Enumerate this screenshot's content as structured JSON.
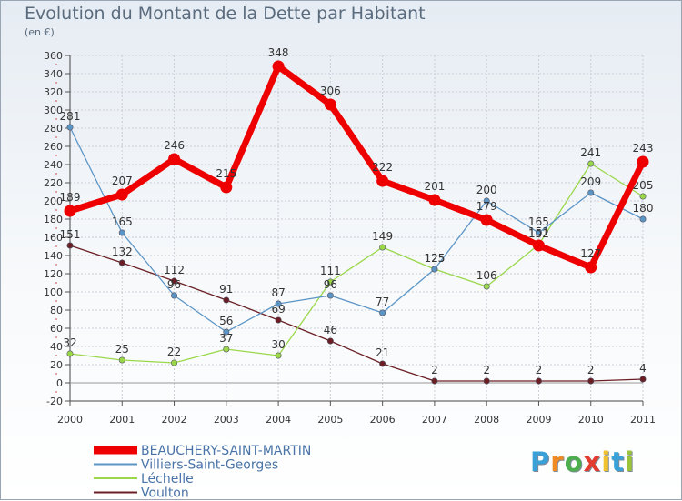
{
  "title": "Evolution du Montant de la Dette par Habitant",
  "unit": "(en €)",
  "logo": {
    "letters": [
      "P",
      "r",
      "o",
      "x",
      "i",
      "t",
      "i"
    ],
    "colors": [
      "#39a0d8",
      "#f08a24",
      "#4cae4c",
      "#e33b2e",
      "#f2c12e",
      "#39a0d8",
      "#9bc43a"
    ]
  },
  "chart_data": {
    "type": "line",
    "x": [
      "2000",
      "2001",
      "2002",
      "2003",
      "2004",
      "2005",
      "2006",
      "2007",
      "2008",
      "2009",
      "2010",
      "2011"
    ],
    "ylim": [
      -20,
      360
    ],
    "yticks": [
      -20,
      0,
      20,
      40,
      60,
      80,
      100,
      120,
      140,
      160,
      180,
      200,
      220,
      240,
      260,
      280,
      300,
      320,
      340,
      360
    ],
    "grid": true,
    "legend_position": "bottom-left",
    "series": [
      {
        "name": "Voulton",
        "color": "#6b1f24",
        "values": [
          151,
          132,
          112,
          91,
          69,
          46,
          21,
          2,
          2,
          2,
          2,
          4
        ],
        "labels": [
          "151",
          "132",
          "112",
          "91",
          "69",
          "46",
          "21",
          "2",
          "2",
          "2",
          "2",
          "4"
        ]
      },
      {
        "name": "Léchelle",
        "color": "#9ad84a",
        "values": [
          32,
          25,
          22,
          37,
          30,
          111,
          149,
          125,
          106,
          152,
          241,
          205
        ],
        "labels": [
          "32",
          "25",
          "22",
          "37",
          "30",
          "111",
          "149",
          "125",
          "106",
          "152",
          "241",
          "205"
        ]
      },
      {
        "name": "Villiers-Saint-Georges",
        "color": "#5b95c6",
        "values": [
          281,
          165,
          96,
          56,
          87,
          96,
          77,
          125,
          200,
          165,
          209,
          180
        ],
        "labels": [
          "281",
          "165",
          "96",
          "56",
          "87",
          "96",
          "77",
          "125",
          "200",
          "165",
          "209",
          "180"
        ]
      },
      {
        "name": "BEAUCHERY-SAINT-MARTIN",
        "color": "#ee0000",
        "values": [
          189,
          207,
          246,
          215,
          348,
          306,
          222,
          201,
          179,
          151,
          127,
          243
        ],
        "labels": [
          "189",
          "207",
          "246",
          "215",
          "348",
          "306",
          "222",
          "201",
          "179",
          "151",
          "127",
          "243"
        ]
      }
    ],
    "legend_order": [
      "BEAUCHERY-SAINT-MARTIN",
      "Villiers-Saint-Georges",
      "Léchelle",
      "Voulton"
    ]
  }
}
